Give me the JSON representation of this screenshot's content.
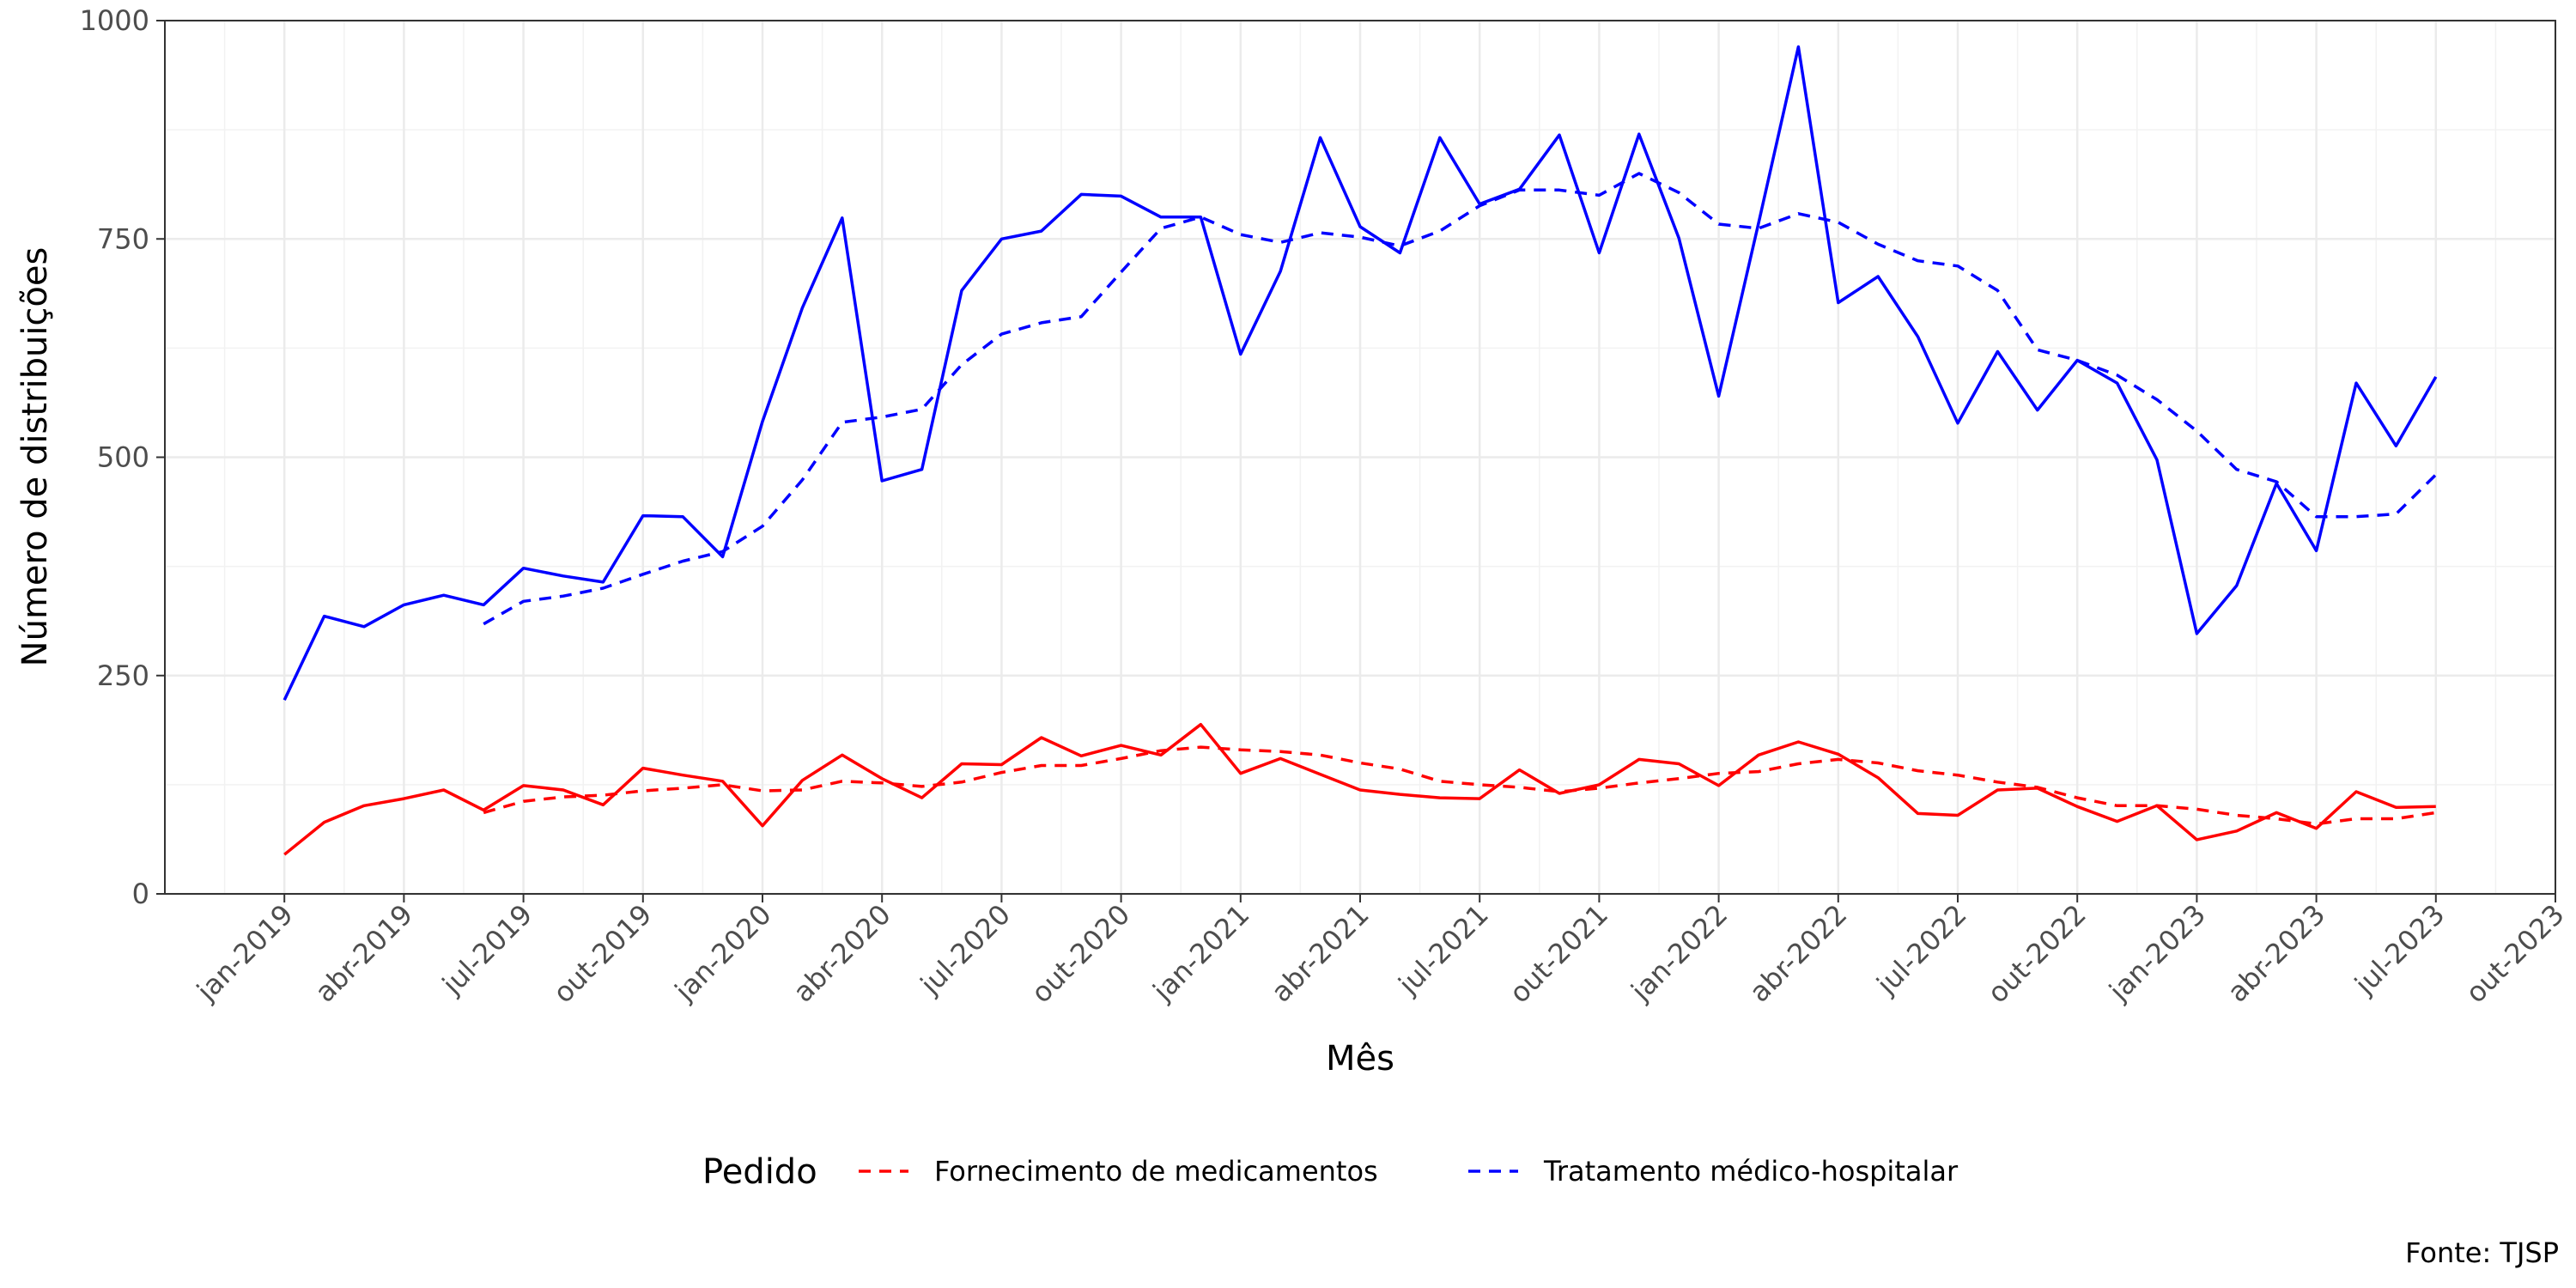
{
  "chart_data": {
    "type": "line",
    "xlabel": "Mês",
    "ylabel": "Número de distribuições",
    "ylim": [
      0,
      1000
    ],
    "yticks": [
      0,
      250,
      500,
      750,
      1000
    ],
    "xlim": [
      "2018-10",
      "2023-10"
    ],
    "xticks": [
      "jan-2019",
      "abr-2019",
      "jul-2019",
      "out-2019",
      "jan-2020",
      "abr-2020",
      "jul-2020",
      "out-2020",
      "jan-2021",
      "abr-2021",
      "jul-2021",
      "out-2021",
      "jan-2022",
      "abr-2022",
      "jul-2022",
      "out-2022",
      "jan-2023",
      "abr-2023",
      "jul-2023",
      "out-2023"
    ],
    "x": [
      "2019-01",
      "2019-02",
      "2019-03",
      "2019-04",
      "2019-05",
      "2019-06",
      "2019-07",
      "2019-08",
      "2019-09",
      "2019-10",
      "2019-11",
      "2019-12",
      "2020-01",
      "2020-02",
      "2020-03",
      "2020-04",
      "2020-05",
      "2020-06",
      "2020-07",
      "2020-08",
      "2020-09",
      "2020-10",
      "2020-11",
      "2020-12",
      "2021-01",
      "2021-02",
      "2021-03",
      "2021-04",
      "2021-05",
      "2021-06",
      "2021-07",
      "2021-08",
      "2021-09",
      "2021-10",
      "2021-11",
      "2021-12",
      "2022-01",
      "2022-02",
      "2022-03",
      "2022-04",
      "2022-05",
      "2022-06",
      "2022-07",
      "2022-08",
      "2022-09",
      "2022-10",
      "2022-11",
      "2022-12",
      "2023-01",
      "2023-02",
      "2023-03",
      "2023-04",
      "2023-05",
      "2023-06",
      "2023-07"
    ],
    "legend": {
      "title": "Pedido",
      "position": "bottom"
    },
    "grid": true,
    "series": [
      {
        "name": "Fornecimento de medicamentos",
        "color": "#ff0000",
        "style": "solid",
        "values": [
          45,
          82,
          101,
          109,
          119,
          96,
          124,
          119,
          102,
          144,
          136,
          129,
          78,
          130,
          159,
          132,
          110,
          149,
          148,
          179,
          158,
          170,
          159,
          194,
          138,
          155,
          137,
          119,
          114,
          110,
          109,
          142,
          115,
          125,
          154,
          149,
          124,
          159,
          174,
          160,
          133,
          92,
          90,
          119,
          121,
          100,
          83,
          101,
          62,
          72,
          93,
          75,
          117,
          99,
          100
        ]
      },
      {
        "name": "Fornecimento de medicamentos",
        "color": "#ff0000",
        "style": "dashed",
        "values": [
          null,
          null,
          null,
          null,
          null,
          93,
          106,
          111,
          113,
          118,
          121,
          125,
          118,
          119,
          129,
          127,
          123,
          128,
          139,
          147,
          147,
          155,
          164,
          168,
          165,
          163,
          159,
          150,
          143,
          129,
          125,
          122,
          117,
          121,
          127,
          132,
          138,
          140,
          149,
          154,
          150,
          141,
          136,
          128,
          122,
          110,
          101,
          101,
          97,
          90,
          86,
          80,
          86,
          86,
          93
        ]
      },
      {
        "name": "Tratamento médico-hospitalar",
        "color": "#0000ff",
        "style": "solid",
        "values": [
          222,
          318,
          306,
          331,
          342,
          331,
          373,
          364,
          357,
          433,
          432,
          386,
          541,
          671,
          774,
          473,
          486,
          691,
          750,
          759,
          801,
          799,
          775,
          775,
          618,
          713,
          866,
          764,
          734,
          866,
          790,
          807,
          869,
          734,
          870,
          751,
          570,
          768,
          970,
          677,
          707,
          638,
          539,
          621,
          554,
          611,
          585,
          497,
          298,
          353,
          470,
          393,
          585,
          513,
          592
        ]
      },
      {
        "name": "Tratamento médico-hospitalar",
        "color": "#0000ff",
        "style": "dashed",
        "values": [
          null,
          null,
          null,
          null,
          null,
          309,
          335,
          341,
          350,
          366,
          381,
          392,
          421,
          474,
          540,
          546,
          555,
          606,
          641,
          654,
          661,
          712,
          762,
          775,
          755,
          746,
          757,
          752,
          742,
          759,
          788,
          806,
          806,
          800,
          825,
          803,
          767,
          762,
          779,
          769,
          744,
          725,
          719,
          691,
          623,
          611,
          594,
          566,
          530,
          486,
          472,
          432,
          432,
          435,
          480
        ]
      }
    ],
    "legend_entries": [
      {
        "label": "Fornecimento de medicamentos",
        "color": "#ff0000"
      },
      {
        "label": "Tratamento médico-hospitalar",
        "color": "#0000ff"
      }
    ],
    "caption": "Fonte: TJSP"
  }
}
